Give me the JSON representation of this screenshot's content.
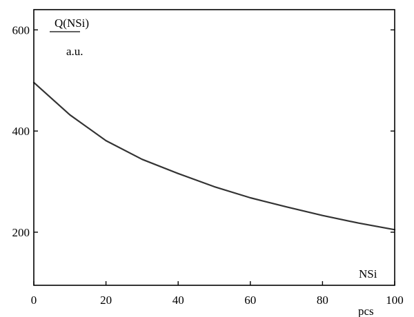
{
  "chart_data": {
    "type": "line",
    "title": "",
    "ylabel_top": "Q(NSi)",
    "ylabel_bottom": "a.u.",
    "xlabel": "NSi",
    "xunit": "pcs",
    "xlim": [
      0,
      100
    ],
    "ylim": [
      95,
      640
    ],
    "xticks": [
      0,
      20,
      40,
      60,
      80,
      100
    ],
    "yticks": [
      200,
      400,
      600
    ],
    "grid": false,
    "legend": "none",
    "line_color": "#333333",
    "series": [
      {
        "x": [
          0,
          10,
          20,
          30,
          40,
          50,
          60,
          70,
          80,
          90,
          100
        ],
        "y": [
          496,
          432,
          381,
          344,
          316,
          290,
          268,
          250,
          233,
          218,
          205
        ]
      }
    ]
  }
}
